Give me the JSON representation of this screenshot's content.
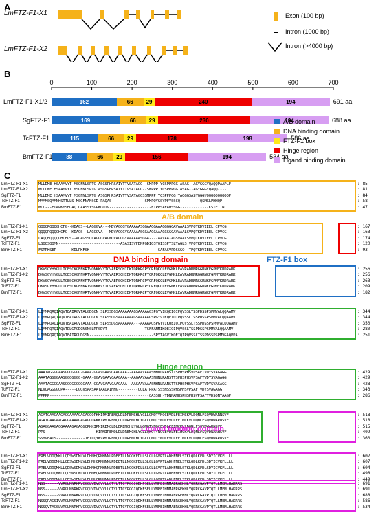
{
  "panels": {
    "a": "A",
    "b": "B",
    "c": "C"
  },
  "panel_a": {
    "genes": [
      "LmFTZ-F1-X1",
      "LmFTZ-F1-X2"
    ],
    "legend": {
      "exon": "Exon (100 bp)",
      "intron_short": "Intron (1000 bp)",
      "intron_long": "Intron (>4000 bp)"
    }
  },
  "chart_data": {
    "type": "bar",
    "orientation": "horizontal-stacked",
    "title": "",
    "xlabel": "",
    "ylabel": "",
    "xlim": [
      0,
      700
    ],
    "ticks": [
      "0",
      "100",
      "200",
      "300",
      "400",
      "500",
      "600",
      "700"
    ],
    "tick_values": [
      0,
      100,
      200,
      300,
      400,
      500,
      600,
      700
    ],
    "categories": [
      "LmFTZ-F1-X1/2",
      "SgFTZ-F1",
      "TcFTZ-F1",
      "BmFTZ-F1"
    ],
    "totals": [
      "691 aa",
      "688 aa",
      "586 aa",
      "534 aa"
    ],
    "domain_colors": {
      "ab": "#1f6fc4",
      "dbd": "#f5b21a",
      "ftz": "#ffe81a",
      "hinge": "#ee0000",
      "lbd": "#d79ef2"
    },
    "bars": [
      [
        162,
        66,
        29,
        240,
        194
      ],
      [
        169,
        66,
        29,
        230,
        194
      ],
      [
        115,
        66,
        29,
        178,
        198
      ],
      [
        88,
        66,
        29,
        156,
        194
      ]
    ],
    "legend": [
      "A/B domain",
      "DNA binding domain",
      "FTZ-F1 box",
      "Hinge region",
      "Ligand binding domain"
    ]
  },
  "panel_c": {
    "species": [
      "LmFTZ-F1-X1",
      "LmFTZ-F1-X2",
      "SgFTZ-F1",
      "TcFTZ-F1",
      "BmFTZ-F1"
    ],
    "domain_titles": {
      "ab": "A/B domain",
      "dbd": "DNA binding domain",
      "ftz": "FTZ-F1 box",
      "hinge": "Hinge region",
      "lbd": "Ligand binding domain"
    },
    "blocks": [
      {
        "seqs": [
          "MLLDME HSAAMVYT MSGFNLSPTG ASGSPHRSAIYTTVSATAGG--SMPPP YCSPPPGG ASAG--AGYGGGYQAQQPAAPLF",
          "MLLDME HSAAMVYT MSGFNLSPTG ASGSPHRSAIYTTVSATAGG--SMPPP YCSPPPGG ASAG--AGYGGGYQAQQ----",
          "MLLDME HSAAMVYT MSGFNLSPTG ASGSPHRSAIYTTVSATAGGSSMPPP YCSPPPGG TAGGGSASYGGGYQQQQQQQQQQP",
          "MMMMSQMMNHSTTLLS MSGFNANSGD PAQAS---------------SPMPQYGSYPFYSSCQ---------QSMGLPHHQP",
          "MLL---EDAPKMSHGAQ LAASSYSGPKGDIV-------------------EIPPSAEAMSSGG-------------KSIETTN"
        ],
        "ends": [
          ": 85",
          ": 81",
          ": 84",
          ": 58",
          ": 47"
        ]
      },
      {
        "seqs": [
          "QQQQPQQQGHCFG--KDAGS--LAGGGVA---MDVAGGGYGAAAAASGGAAGGAAAGGGGGAVAAALSVPQTKDVIEEL  CPVCG",
          "QQQQPQQQGHCFG--KDAGS--LAGGGVA---MDVAGGGYGAAAAASGGAAGGAAAGGGGGAVAAALSVPQTKDVIEEL  CPVCG",
          "LAQQHQQQQGHCFGS--ADAGSSQLAGGGVAGMDVAGGGYAAAAAASGGA----AAVAA-AGSVAALSVPQTKDVIEEL  CPVCG",
          "LSQQSQQMN----------------------------ASASISVFDNPGDIQSYQISSPTSLTAGLS VPQTKDVIEEL  CPVCG",
          "FSRRKSEP-------KDLPKFSK-------------------------------SAFASVPDSSGQ--TPQTKDVIEEL  CPVCG"
        ],
        "ends": [
          ": 167",
          ": 163",
          ": 174",
          ": 120",
          ": 93"
        ]
      },
      {
        "seqs": [
          "DKVSGYHYGLLTCESCKGFFKRTVQNKKVYTCVAERSCHIDKTQRKRCPYCRFQKCLEVGMKLEAVRADRMRGGRNKFGPMYKRDRARK",
          "DKVSGYHYGLLTCESCKGFFKRTVQNKKVYTCVAERSCHIDKTQRKRCPYCRFQKCLEVGMKLEAVRADRMRGGRNKFGPMYKRDRARK",
          "DKVSGYHYGLLTCESCKGFFKRTVQNKKVYTCVAERSCHIDKTQRKRCPYCRFQKCLEVGMKLEAVRADRMRGGRNKFGPMYKRDRARK",
          "DKVSGYHYGLLTCESCKGFFKRTVQNKKVYTCVAERSCHIDKTQRKRCPYCRFQKCLEVGMKLEAVRADRMRGGRNKFGPMYKRDRARK",
          "DKVSGYHYGLLTCESCKGFFKRTVQNKKVYTCVAERSCHIDKTQRKRCPYCRFQKCLEVGMKLEAVRADRMRGGRNKFGPMYKRDRARK"
        ],
        "ends": [
          ": 256",
          ": 256",
          ": 263",
          ": 209",
          ": 182"
        ]
      },
      {
        "seqs": [
          "LQMMRQRQIAQVTEAIRGVTALGDGCN SLPSSDGSAAAAAAAGSAAAAAGSPGYVIKQEIQIPQVSSLTSSPDSSPSPMVALQQAAMV",
          "LQMMRQRQIAQVTEAIRGVTALGDGCN SLPSSDGSAAAAAAAGSAAAAAGSPGYVIKQEIQIPQVSSLTSSPDSSPSPMVALQQAAMV",
          "LQMMRQRQIAQVTEAIRGVTALGDGCN SLPSSDGSAAAAAAA---AAAAAGSPGYVIKQEIQIPQVSSLTSSPDSSPSPMVALQQAAMV",
          "LQMMRQRQIAQVTDLGRGDCNSNSLRPSDVT-----------------TSFFANMIKQEIQIPQVSSLTSSPDSSPSPMVALQQAAMV",
          "LQMMRQRQIAQVTEAIRGLDGSN-----------------------------SPYTAGVIKQEIQIPQVSSLTSSPDSSPSPMVGAQPPA"
        ],
        "ends": [
          ": 344",
          ": 344",
          ": 350",
          ": 280",
          ": 251"
        ]
      },
      {
        "seqs": [
          "AAATAGGGGAASGGGGGGG-GAAA-GGAVGAAVGAAGAAA--AAGAAVAAASNHNLRANSTTSPHSPHSVPSAFTVDYSVAGAGG",
          "AAATAGGGGAASGGGGGGG-GAAA-GGAVGAAVGAAGAAA--AAGAAVAAASNHNLRANSTTSPHSPHSVPSAFTVDYSVAGAGG",
          "AAATAGGGGAASGGGGGGGGGAAA-GGAVGAAVGAAGAAA--AAGAAVAAASNHNLRANSTTSPHSPHSVPSAFTVDYSVAGAGG",
          "NLVQAGGGGQPA-----DGGVSAASAATAAQAIHHG---------QQLATPPATSSSHSSSPHSPHSVPSAFTVDYSVAGAGG",
          "PPPPP---------------------------------------------QASSHH-TDNNAMHSPHSPHSVPSAFTVDSQNTAAGP"
        ],
        "ends": [
          ": 429",
          ": 429",
          ": 428",
          ": 343",
          ": 286"
        ]
      },
      {
        "seqs": [
          "AGATGAAGAAGAGGAAAAGAGAGGQPKKIPMIREMQLDLDREMCHLYGLLQMQTYNQCEVDLFEIMCKVLDQNLFSQVDWARNSVF",
          "AGATGAAGAAGAGGAAAAGAGAGGQPKKIPMIREMQLDLDREMCHLYGLLQMQTYNQCEVDLFEIMCKVLDQNLFSQVDWARNSVF",
          "AGAGGAAGAGGAAAAGAGAGGQPKKIPMIREMQLDLDREMCHLYGLLQMQTYNQCEVDLFEIMCKVLDQNLFSQVDWARNSVF",
          "PPS-----------------------KIPMIREMQLDLDREMCHLYGLLQMQTYNQCEVDLFEIMCKVLDQNLFSQVDWARNSVF",
          "SSYVEATS-------------TETLQYKVPMIREMQLDLDREMCHLYGLLQMQTYNQCEVDLFEIMCKVLDQNLFSQVDWARNSVF"
        ],
        "ends": [
          ": 518",
          ": 518",
          ": 515",
          ": 409",
          ": 360"
        ]
      },
      {
        "seqs": [
          "FRELVDDQMKLLQDSWSDMLVLDHMHQRMHNNLPDEETLLNGQKFDLLSLGLLGVPTLADHFNELSTKLQDLKFDLSDYICVKFLLLL",
          "FRELVDDQMKLLQDSWSDMLVLDHMHQRMHNNLPDEETLLNGQKFDLLSLGLLGVPTLADHFNELSTKLQDLKFDLSDYICVKFLLLL",
          "FRELVDDQMKLLQDSWSDMLVLDHMHQRMHNNLPDEETLLNGQKFDLLSLGLLGVPTLADHFNELSTKLQDLKFDLSDYICVKFLLLL",
          "FRELVDDQMKLLQDSWSDMLVLDHMHQRMHNNLPDEETLLNGQKFDLLSLGLLGVPTLADHFNELSTKLQDLKFDLSDYICVKFLLLL",
          "FRELVDDQMKLLQDSWSDMLVLDHMHQRMHNNLPDEETLLNGQKFDLLSLGLLGVPTLADHFNELSTKLQDLKFDLSDYICVKFLLLL"
        ],
        "ends": [
          ": 607",
          ": 607",
          ": 604",
          ": 498",
          ": 449"
        ]
      },
      {
        "seqs": [
          "NSS------VVRGLNNRKRVCGQLVDVQVVLLQTYLTTCYPGGIQDKFSELLVMPEIHNMAERGEKHLYQKRCGAVPTQTLLMEMLHAKRRS",
          "NSS------VVRGLNNRKRVCGQLVDVQVVLLQTYLTTCYPGGIQDKFSELLVMPEIHNMAERGEKHLYQKRCGAVPTQTLLMEMLHAKRRS",
          "NSS------VVRGLNNRKRVCGQLVDVQVVLLQTYLTTCYPGGIQDKFSELLVMPEIHNMAERGEKHLYQKRCGAVPTQTLLMEMLHAKRRS",
          "NSSQPAGSIVVRGLNNRKRVCGQLVDVQVVLLQTYLTTCYPGGIQDKFSELLVMPEIHNMAERGEKHLYQKRCGAVPTQTLLMEMLHAKRRS",
          "NSSQVTAGSLVRGLNNRKRVCGQLVDVQVVLLQTYLTTCYPGGIQDKFSELLVMPEIHNMAERGEKHLYQKRCGAVPTQTLLMEMLHAKRRS"
        ],
        "ends": [
          ": 691",
          ": 691",
          ": 688",
          ": 586",
          ": 534"
        ]
      }
    ]
  }
}
